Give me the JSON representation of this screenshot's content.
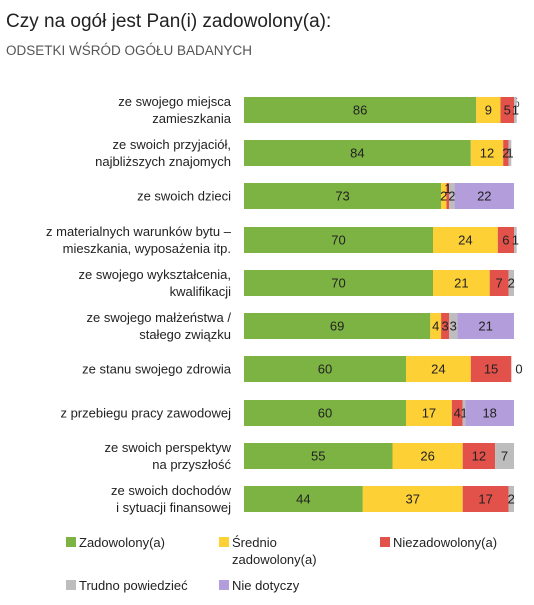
{
  "chart_data": {
    "type": "bar",
    "stacked": true,
    "orientation": "horizontal",
    "title": "Czy na ogół jest Pan(i) zadowolony(a):",
    "subtitle": "ODSETKI WŚRÓD OGÓŁU BADANYCH",
    "unit": "%",
    "xlim": [
      0,
      100
    ],
    "grid": false,
    "legend_position": "bottom",
    "categories": [
      [
        "ze swojego miejsca",
        "zamieszkania"
      ],
      [
        "ze swoich przyjaciół,",
        "najbliższych znajomych"
      ],
      [
        "ze swoich dzieci"
      ],
      [
        "z materialnych warunków bytu –",
        "mieszkania, wyposażenia itp."
      ],
      [
        "ze swojego wykształcenia,",
        "kwalifikacji"
      ],
      [
        "ze swojego małżeństwa /",
        "stałego związku"
      ],
      [
        "ze stanu swojego zdrowia"
      ],
      [
        "z przebiegu pracy zawodowej"
      ],
      [
        "ze swoich perspektyw",
        "na przyszłość"
      ],
      [
        "ze swoich dochodów",
        "i sytuacji finansowej"
      ]
    ],
    "series": [
      {
        "name": "Zadowolony(a)",
        "color": "#7cb342",
        "values": [
          86,
          84,
          73,
          70,
          70,
          69,
          60,
          60,
          55,
          44
        ]
      },
      {
        "name": "Średnio zadowolony(a)",
        "color": "#fdd035",
        "values": [
          9,
          12,
          2,
          24,
          21,
          4,
          24,
          17,
          26,
          37
        ]
      },
      {
        "name": "Niezadowolony(a)",
        "color": "#e2524a",
        "values": [
          5,
          2,
          1,
          6,
          7,
          3,
          15,
          4,
          12,
          17
        ]
      },
      {
        "name": "Trudno powiedzieć",
        "color": "#bdbdbd",
        "values": [
          1,
          1,
          2,
          1,
          2,
          3,
          0,
          1,
          7,
          2
        ]
      },
      {
        "name": "Nie dotyczy",
        "color": "#b39ddb",
        "values": [
          0,
          0,
          22,
          0,
          0,
          21,
          0,
          18,
          0,
          0
        ]
      }
    ],
    "legend": [
      {
        "label": [
          "Zadowolony(a)"
        ],
        "color": "#7cb342"
      },
      {
        "label": [
          "Średnio",
          "zadowolony(a)"
        ],
        "color": "#fdd035"
      },
      {
        "label": [
          "Niezadowolony(a)"
        ],
        "color": "#e2524a"
      },
      {
        "label": [
          "Trudno powiedzieć"
        ],
        "color": "#bdbdbd"
      },
      {
        "label": [
          "Nie dotyczy"
        ],
        "color": "#b39ddb"
      }
    ]
  }
}
